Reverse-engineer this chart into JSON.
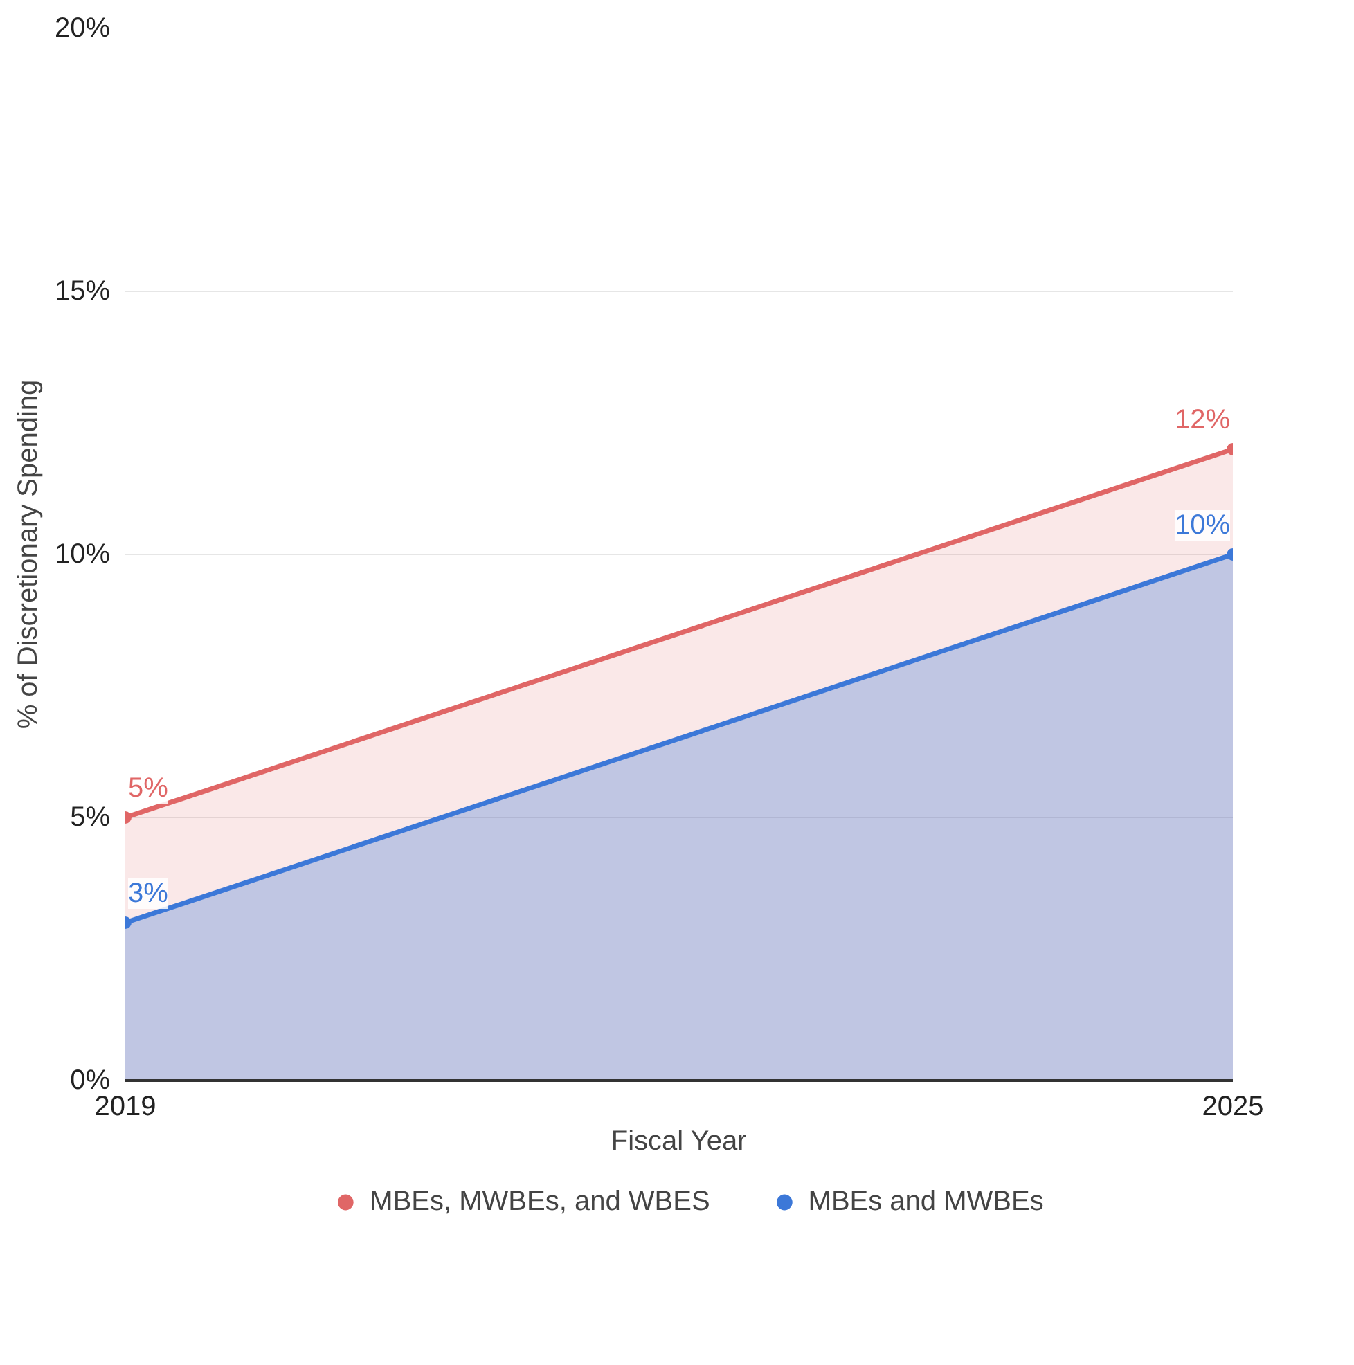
{
  "chart_data": {
    "type": "area",
    "xlabel": "Fiscal Year",
    "ylabel": "% of Discretionary Spending",
    "x": [
      2019,
      2025
    ],
    "xlim": [
      2019,
      2025
    ],
    "xticks": [
      2019,
      2025
    ],
    "ylim": [
      0,
      20
    ],
    "yticks": [
      {
        "value": 0,
        "label": "0%"
      },
      {
        "value": 5,
        "label": "5%"
      },
      {
        "value": 10,
        "label": "10%"
      },
      {
        "value": 15,
        "label": "15%"
      },
      {
        "value": 20,
        "label": "20%"
      }
    ],
    "series": [
      {
        "name": "MBEs, MWBEs, and WBES",
        "color": "#e06666",
        "values": [
          5,
          12
        ],
        "value_labels": [
          "5%",
          "12%"
        ]
      },
      {
        "name": "MBEs and MWBEs",
        "color": "#3c78d8",
        "values": [
          3,
          10
        ],
        "value_labels": [
          "3%",
          "10%"
        ]
      }
    ],
    "grid": "y",
    "legend": "bottom",
    "marker": "circle"
  }
}
